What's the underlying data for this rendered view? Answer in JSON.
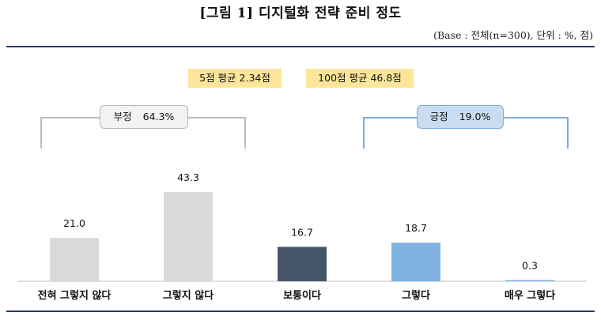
{
  "header": {
    "title": "[그림 1] 디지털화 전략 준비 정도",
    "base_note": "(Base : 전체(n=300), 단위 : %, 점)"
  },
  "averages": {
    "five_point": "5점 평균 2.34점",
    "hundred_point": "100점 평균 46.8점"
  },
  "groups": {
    "negative_label": "부정",
    "negative_value": "64.3%",
    "positive_label": "긍정",
    "positive_value": "19.0%"
  },
  "colors": {
    "gray_bar": "#d9d9d9",
    "neutral_bar": "#44546a",
    "blue_bar": "#80b2e0",
    "bracket_gray": "#bdbdbd",
    "bracket_blue": "#7aaee0",
    "avg_box": "#fde59a",
    "rule": "#2a3a66"
  },
  "chart_data": {
    "type": "bar",
    "categories": [
      "전혀 그렇지 않다",
      "그렇지 않다",
      "보통이다",
      "그렇다",
      "매우 그렇다"
    ],
    "values": [
      21.0,
      43.3,
      16.7,
      18.7,
      0.3
    ],
    "value_labels": [
      "21.0",
      "43.3",
      "16.7",
      "18.7",
      "0.3"
    ],
    "bar_colors": [
      "#d9d9d9",
      "#d9d9d9",
      "#44546a",
      "#80b2e0",
      "#80b2e0"
    ],
    "ylim": [
      0,
      43.3
    ]
  }
}
